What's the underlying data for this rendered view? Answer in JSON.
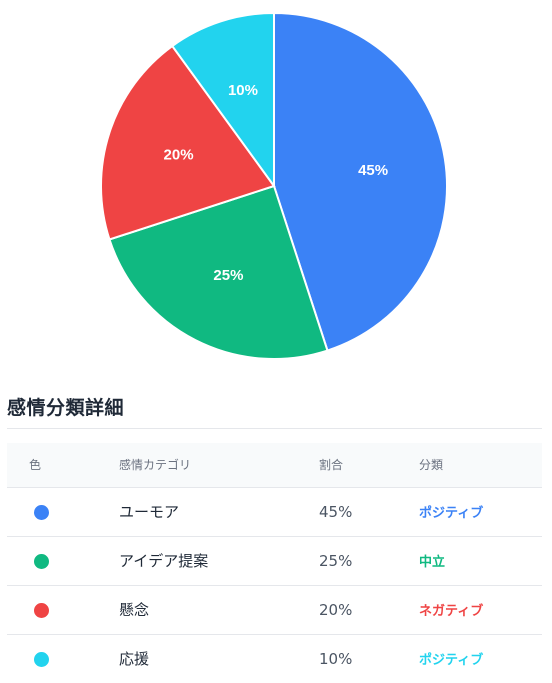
{
  "chart_data": {
    "type": "pie",
    "categories": [
      "ユーモア",
      "アイデア提案",
      "懸念",
      "応援"
    ],
    "values": [
      45,
      25,
      20,
      10
    ],
    "labels": [
      "45%",
      "25%",
      "20%",
      "10%"
    ],
    "colors": [
      "#3b82f6",
      "#10b981",
      "#ef4444",
      "#22d3ee"
    ],
    "start": "top",
    "direction": "clockwise",
    "legend": "none"
  },
  "section": {
    "title": "感情分類詳細"
  },
  "table": {
    "headers": {
      "color": "色",
      "category": "感情カテゴリ",
      "ratio": "割合",
      "classification": "分類"
    },
    "rows": [
      {
        "color": "#3b82f6",
        "category": "ユーモア",
        "ratio": "45%",
        "classification": "ポジティブ",
        "class_color": "#3b82f6"
      },
      {
        "color": "#10b981",
        "category": "アイデア提案",
        "ratio": "25%",
        "classification": "中立",
        "class_color": "#10b981"
      },
      {
        "color": "#ef4444",
        "category": "懸念",
        "ratio": "20%",
        "classification": "ネガティブ",
        "class_color": "#ef4444"
      },
      {
        "color": "#22d3ee",
        "category": "応援",
        "ratio": "10%",
        "classification": "ポジティブ",
        "class_color": "#22d3ee"
      }
    ]
  }
}
